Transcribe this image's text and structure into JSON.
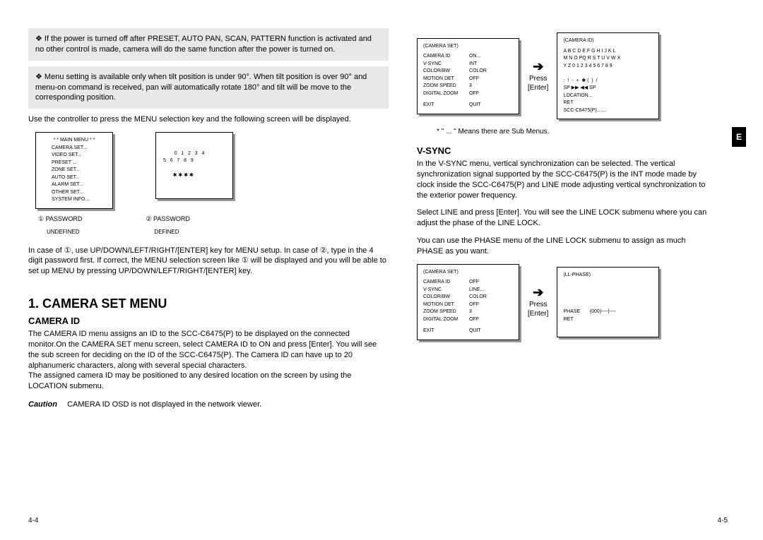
{
  "left": {
    "note1": "❖ If the power is turned off after PRESET, AUTO PAN, SCAN, PATTERN function is activated and no other control is made, camera will do the same function after the power is turned on.",
    "note2": "❖ Menu setting is available only when tilt position is under 90°. When tilt position is over 90° and menu-on command is received, pan will automatically rotate 180° and tilt will be move to the corresponding position.",
    "para1": "Use the controller to press the MENU selection key and the following screen will be displayed.",
    "mainmenu_title": "* * MAIN MENU * *",
    "mainmenu_items": "CAMERA SET...\nVIDEO SET...\nPRESET ...\nZONE SET...\nAUTO SET...\nALARM SET...\nOTHER SET...\nSYSTEM INFO...",
    "password_grid": "0   1   2   3   4\n5   6   7   8   9\n\n       ✱ ✱ ✱ ✱",
    "caption1a": "① PASSWORD",
    "caption1b": "UNDEFINED",
    "caption2a": "② PASSWORD",
    "caption2b": "DEFINED",
    "para2": "In case of ①, use UP/DOWN/LEFT/RIGHT/[ENTER] key for MENU setup. In case of ②, type in the 4 digit password first. If correct, the MENU selection screen like ① will be displayed and you will be able to set up MENU by pressing UP/DOWN/LEFT/RIGHT/[ENTER] key.",
    "h1": "1. CAMERA SET MENU",
    "h2": "CAMERA ID",
    "para3": "The CAMERA ID menu assigns an ID to the SCC-C6475(P) to be displayed on the connected monitor.On the CAMERA SET menu screen, select CAMERA ID to ON and press [Enter].  You will see the sub screen for deciding on the ID of the SCC-C6475(P).   The Camera ID can have up to 20 alphanumeric characters, along with several special characters.\nThe assigned camera ID may be positioned to any desired location on the screen by using the LOCATION submenu.",
    "caution_label": "Caution",
    "caution_text": "CAMERA ID OSD is not displayed in the network viewer.",
    "page_num": "4-4"
  },
  "right": {
    "box1_title": "(CAMERA SET)",
    "box1_rows": [
      [
        "CAMERA ID",
        "ON..."
      ],
      [
        "V-SYNC",
        "INT"
      ],
      [
        "COLOR/BW",
        "COLOR"
      ],
      [
        "MOTION DET",
        "OFF"
      ],
      [
        "ZOOM SPEED",
        "3"
      ],
      [
        "DIGITAL ZOOM",
        "OFF"
      ],
      [
        "",
        ""
      ],
      [
        "EXIT",
        "QUIT"
      ]
    ],
    "press_label": "Press\n[Enter]",
    "box2_title": "(CAMERA ID)",
    "box2_body": "A B C D E F G H I J K L\nM N O PQ R S T U V W X\nY Z 0 1 2 3 4 5 6 7 8 9\n\n:  !  -  +  ✱ (  )  /\nSP ▶▶ ◀◀ SP\nLOCATION...\nRET\nSCC-C6475(P).......",
    "subnote": "*  \" ...  \" Means there are Sub Menus.",
    "h2": "V-SYNC",
    "para1": "In the V-SYNC menu, vertical synchronization can be selected.  The vertical synchronization signal supported by the  SCC-C6475(P) is the INT mode made by clock inside the SCC-C6475(P) and LINE mode adjusting vertical synchronization to the exterior power frequency.",
    "para2": "Select LINE and press [Enter].  You will see the LINE LOCK submenu where you can adjust the phase of the LINE LOCK.",
    "para3": "You can use the PHASE menu of the LINE LOCK submenu to assign as much PHASE as you want.",
    "box3_title": "(CAMERA SET)",
    "box3_rows": [
      [
        "CAMERA ID",
        "OFF"
      ],
      [
        "V-SYNC",
        "LINE..."
      ],
      [
        "COLOR/BW",
        "COLOR"
      ],
      [
        "MOTION DET",
        "OFF"
      ],
      [
        "ZOOM SPEED",
        "3"
      ],
      [
        "DIGITAL ZOOM",
        "OFF"
      ],
      [
        "",
        ""
      ],
      [
        "EXIT",
        "QUIT"
      ]
    ],
    "box4_title": "(LL-PHASE)",
    "box4_body": "\n\n\n\nPHASE       (000)----|----\nRET",
    "page_num": "4-5",
    "tab": "E"
  }
}
